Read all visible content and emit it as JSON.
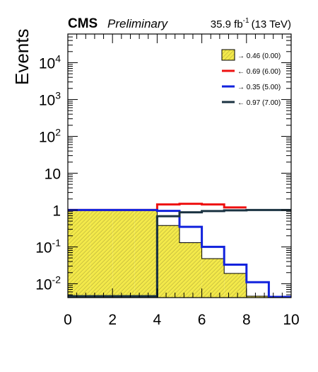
{
  "header": {
    "experiment": "CMS",
    "status": "Preliminary",
    "lumi_value": "35.9 fb",
    "lumi_exp": "-1",
    "energy": "(13 TeV)"
  },
  "chart_data": {
    "type": "histogram",
    "ylabel": "Events",
    "xlabel": "",
    "xlim": [
      0,
      10
    ],
    "ylim": [
      0.0042,
      60000
    ],
    "yscale": "log",
    "x_ticks": [
      "0",
      "2",
      "4",
      "6",
      "8",
      "10"
    ],
    "y_ticks": [
      {
        "value": 0.01,
        "base": "10",
        "exp": "-2"
      },
      {
        "value": 0.1,
        "base": "10",
        "exp": "-1"
      },
      {
        "value": 1,
        "base": "1",
        "exp": ""
      },
      {
        "value": 10,
        "base": "10",
        "exp": ""
      },
      {
        "value": 100,
        "base": "10",
        "exp": "2"
      },
      {
        "value": 1000,
        "base": "10",
        "exp": "3"
      },
      {
        "value": 10000,
        "base": "10",
        "exp": "4"
      }
    ],
    "series": [
      {
        "name": "→ 0.46 (0.00)",
        "style": "filled-hatched",
        "color": "#f3e94a",
        "edges": [
          0,
          1,
          2,
          3,
          4,
          5,
          6,
          7,
          8,
          9,
          10
        ],
        "values": [
          1,
          1,
          1,
          1,
          0.38,
          0.13,
          0.048,
          0.019,
          0.0046,
          0.0046
        ]
      },
      {
        "name": "← 0.69 (6.00)",
        "style": "line",
        "color": "#ee1111",
        "edges": [
          0,
          1,
          2,
          3,
          4,
          5,
          6,
          7,
          8
        ],
        "values": [
          1,
          1,
          1,
          1,
          1.42,
          1.48,
          1.42,
          1.18
        ]
      },
      {
        "name": "→ 0.35 (5.00)",
        "style": "line",
        "color": "#1122dd",
        "edges": [
          0,
          1,
          2,
          3,
          4,
          5,
          6,
          7,
          8,
          9,
          10
        ],
        "values": [
          1,
          1,
          1,
          1,
          0.95,
          0.35,
          0.1,
          0.033,
          0.011,
          0.0044
        ]
      },
      {
        "name": "← 0.97 (7.00)",
        "style": "line",
        "color": "#1b3342",
        "edges": [
          0,
          1,
          2,
          3,
          4,
          5,
          6,
          7,
          8,
          9,
          10
        ],
        "values": [
          0.0046,
          0.0046,
          0.0046,
          0.0046,
          0.68,
          0.87,
          0.94,
          0.98,
          1,
          1
        ]
      }
    ],
    "legend": {
      "position": "top-right"
    },
    "grid": false
  }
}
